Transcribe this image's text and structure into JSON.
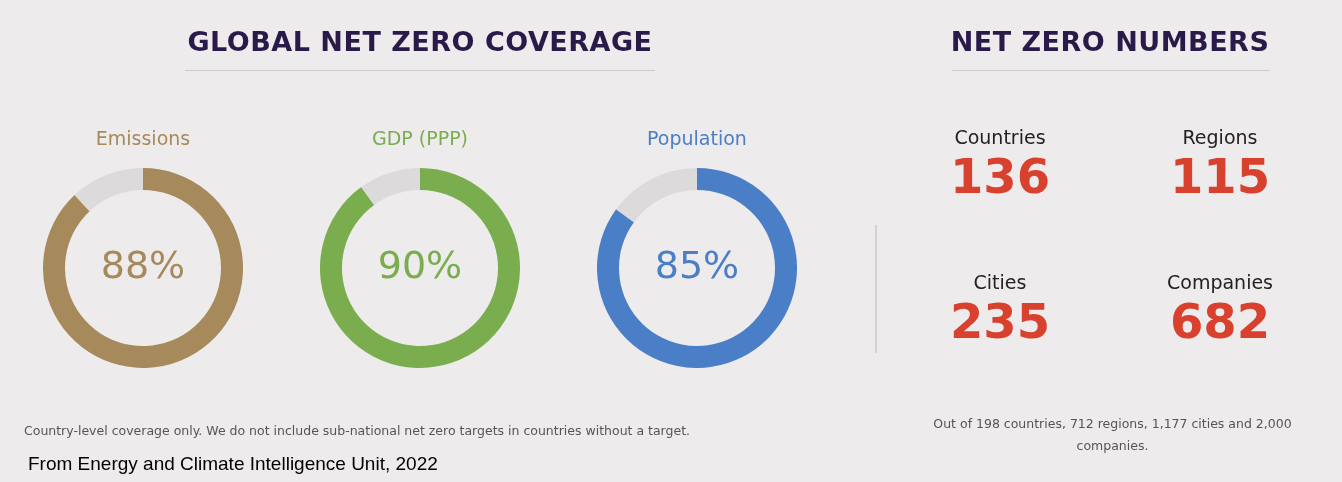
{
  "chart_data": [
    {
      "type": "donut",
      "title": "Emissions",
      "categories": [
        null,
        null
      ],
      "values": [
        88,
        12
      ],
      "colors": [
        "#a68a5c",
        "#dcdadb"
      ],
      "value_labels": [
        "88%",
        null
      ],
      "annotations": [
        "GLOBAL NET ZERO COVERAGE",
        "Country-level coverage only. We do not include sub-national net zero targets in countries without a target.",
        "From Energy and Climate Intelligence Unit, 2022"
      ]
    },
    {
      "type": "donut",
      "title": "GDP (PPP)",
      "categories": [
        null,
        null
      ],
      "values": [
        90,
        10
      ],
      "colors": [
        "#79ad4e",
        "#dcdadb"
      ],
      "value_labels": [
        "90%",
        null
      ]
    },
    {
      "type": "donut",
      "title": "Population",
      "categories": [
        null,
        null
      ],
      "values": [
        85,
        15
      ],
      "colors": [
        "#4a7ec7",
        "#dcdadb"
      ],
      "value_labels": [
        "85%",
        null
      ]
    },
    {
      "type": "other",
      "title": "NET ZERO NUMBERS",
      "categories": [
        "Countries",
        "Regions",
        "Cities",
        "Companies"
      ],
      "values": [
        136,
        115,
        235,
        682
      ],
      "color": "#d9412f",
      "data_labels": true,
      "annotations": [
        "Out of 198 countries, 712 regions, 1,177 cities and 2,000 companies."
      ]
    }
  ]
}
